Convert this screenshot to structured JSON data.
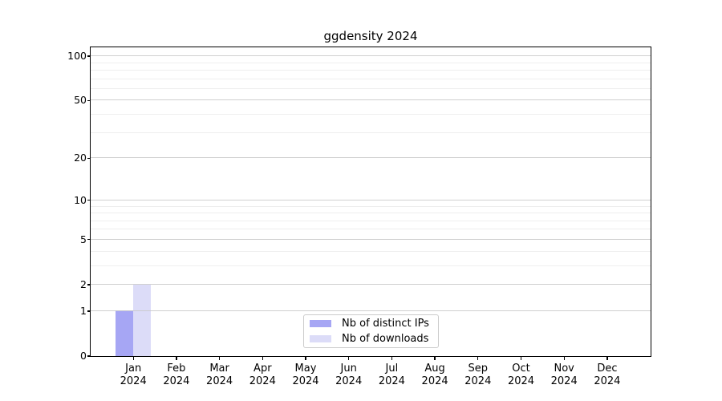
{
  "title": "ggdensity 2024",
  "colors": {
    "ips": "#a6a6f4",
    "downloads": "#dcdcf8",
    "spine": "#000000",
    "grid_major": "#c8c8c8",
    "grid_minor": "#ececec",
    "text": "#000000",
    "legend_border": "#cccccc"
  },
  "legend": {
    "items": [
      {
        "label": "Nb of distinct IPs",
        "swatch": "ips"
      },
      {
        "label": "Nb of downloads",
        "swatch": "downloads"
      }
    ]
  },
  "chart_data": {
    "type": "bar",
    "title": "ggdensity 2024",
    "x": [
      {
        "month": "Jan",
        "year": "2024"
      },
      {
        "month": "Feb",
        "year": "2024"
      },
      {
        "month": "Mar",
        "year": "2024"
      },
      {
        "month": "Apr",
        "year": "2024"
      },
      {
        "month": "May",
        "year": "2024"
      },
      {
        "month": "Jun",
        "year": "2024"
      },
      {
        "month": "Jul",
        "year": "2024"
      },
      {
        "month": "Aug",
        "year": "2024"
      },
      {
        "month": "Sep",
        "year": "2024"
      },
      {
        "month": "Oct",
        "year": "2024"
      },
      {
        "month": "Nov",
        "year": "2024"
      },
      {
        "month": "Dec",
        "year": "2024"
      }
    ],
    "series": [
      {
        "name": "Nb of distinct IPs",
        "color_key": "ips",
        "values": [
          1,
          0,
          0,
          0,
          0,
          0,
          0,
          0,
          0,
          0,
          0,
          0
        ]
      },
      {
        "name": "Nb of downloads",
        "color_key": "downloads",
        "values": [
          2,
          0,
          0,
          0,
          0,
          0,
          0,
          0,
          0,
          0,
          0,
          0
        ]
      }
    ],
    "yscale": "log1p",
    "ylim": [
      0,
      114
    ],
    "y_major_ticks": [
      0,
      1,
      2,
      5,
      10,
      20,
      50,
      100
    ],
    "y_minor_gridlines": [
      3,
      4,
      6,
      7,
      8,
      9,
      30,
      40,
      60,
      70,
      80,
      90
    ],
    "grid": "horizontal",
    "legend_position": "lower center"
  }
}
